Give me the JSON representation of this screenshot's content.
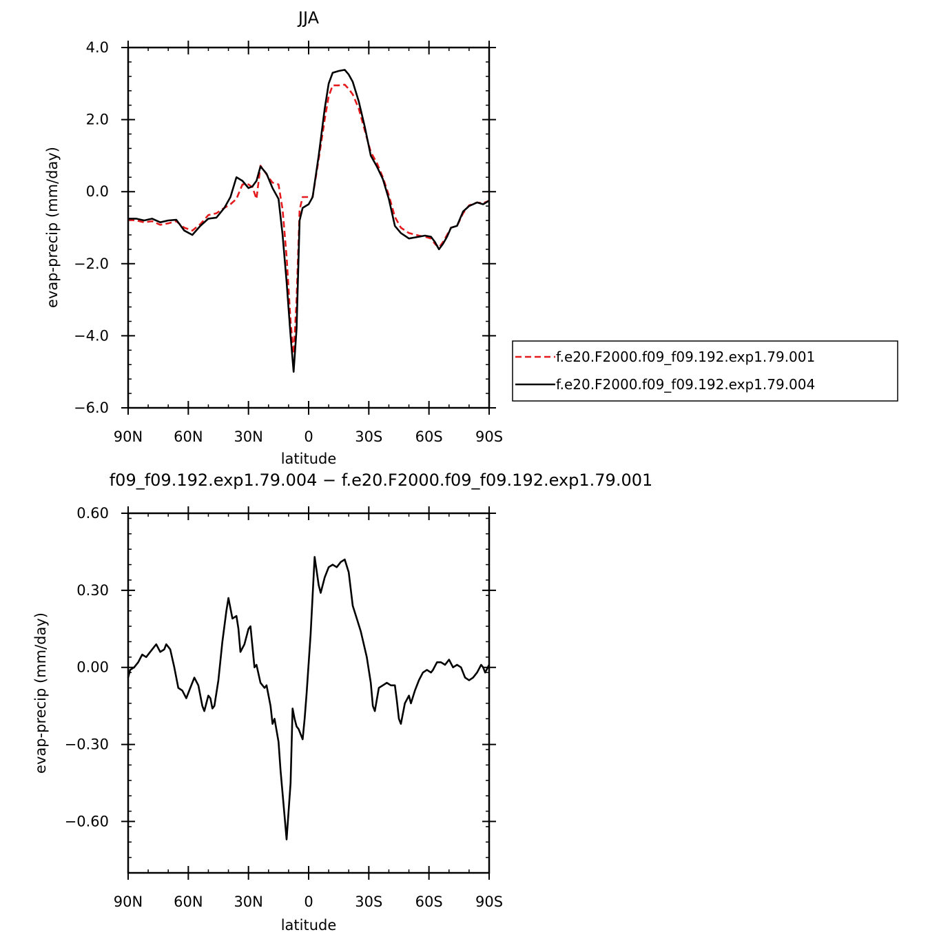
{
  "chart_data": [
    {
      "type": "line",
      "title": "JJA",
      "xlabel": "latitude",
      "ylabel": "evap-precip (mm/day)",
      "xlim": [
        90,
        -90
      ],
      "ylim": [
        -6.0,
        4.0
      ],
      "x_ticks": [
        {
          "value": 90,
          "label": "90N"
        },
        {
          "value": 60,
          "label": "60N"
        },
        {
          "value": 30,
          "label": "30N"
        },
        {
          "value": 0,
          "label": "0"
        },
        {
          "value": -30,
          "label": "30S"
        },
        {
          "value": -60,
          "label": "60S"
        },
        {
          "value": -90,
          "label": "90S"
        }
      ],
      "y_ticks": [
        {
          "value": 4.0,
          "label": "4.0"
        },
        {
          "value": 2.0,
          "label": "2.0"
        },
        {
          "value": 0.0,
          "label": "0.0"
        },
        {
          "value": -2.0,
          "label": "−2.0"
        },
        {
          "value": -4.0,
          "label": "−4.0"
        },
        {
          "value": -6.0,
          "label": "−6.0"
        }
      ],
      "legend_position": "right",
      "series": [
        {
          "name": "f.e20.F2000.f09_f09.192.exp1.79.001",
          "color": "#e41a1c",
          "dash": "dashed",
          "points": [
            [
              90,
              -0.78
            ],
            [
              86,
              -0.8
            ],
            [
              82,
              -0.85
            ],
            [
              78,
              -0.82
            ],
            [
              74,
              -0.92
            ],
            [
              70,
              -0.88
            ],
            [
              66,
              -0.82
            ],
            [
              62,
              -1.0
            ],
            [
              58,
              -1.08
            ],
            [
              54,
              -0.9
            ],
            [
              50,
              -0.65
            ],
            [
              46,
              -0.6
            ],
            [
              42,
              -0.45
            ],
            [
              39,
              -0.35
            ],
            [
              36,
              -0.2
            ],
            [
              33,
              0.2
            ],
            [
              30,
              0.2
            ],
            [
              28,
              0.12
            ],
            [
              26,
              -0.2
            ],
            [
              24,
              0.72
            ],
            [
              21,
              0.48
            ],
            [
              18,
              0.25
            ],
            [
              15,
              0.2
            ],
            [
              13,
              -0.5
            ],
            [
              11,
              -1.8
            ],
            [
              9,
              -3.6
            ],
            [
              7.5,
              -4.5
            ],
            [
              6,
              -3.0
            ],
            [
              4.5,
              -0.5
            ],
            [
              3,
              -0.15
            ],
            [
              0,
              -0.15
            ],
            [
              -2,
              -0.15
            ],
            [
              -5,
              0.9
            ],
            [
              -8,
              2.0
            ],
            [
              -10,
              2.65
            ],
            [
              -12,
              2.95
            ],
            [
              -15,
              2.95
            ],
            [
              -18,
              2.97
            ],
            [
              -20,
              2.85
            ],
            [
              -22,
              2.7
            ],
            [
              -25,
              2.3
            ],
            [
              -28,
              1.7
            ],
            [
              -31,
              1.1
            ],
            [
              -34,
              0.8
            ],
            [
              -37,
              0.4
            ],
            [
              -40,
              -0.1
            ],
            [
              -43,
              -0.7
            ],
            [
              -46,
              -1.0
            ],
            [
              -50,
              -1.15
            ],
            [
              -55,
              -1.22
            ],
            [
              -58,
              -1.25
            ],
            [
              -61,
              -1.3
            ],
            [
              -63,
              -1.45
            ],
            [
              -65,
              -1.55
            ],
            [
              -67,
              -1.4
            ],
            [
              -69,
              -1.2
            ],
            [
              -71,
              -1.0
            ],
            [
              -74,
              -0.95
            ],
            [
              -77,
              -0.6
            ],
            [
              -80,
              -0.38
            ],
            [
              -84,
              -0.3
            ],
            [
              -87,
              -0.32
            ],
            [
              -90,
              -0.25
            ]
          ]
        },
        {
          "name": "f.e20.F2000.f09_f09.192.exp1.79.004",
          "color": "#000000",
          "dash": "solid",
          "points": [
            [
              90,
              -0.75
            ],
            [
              86,
              -0.75
            ],
            [
              82,
              -0.8
            ],
            [
              78,
              -0.75
            ],
            [
              74,
              -0.85
            ],
            [
              70,
              -0.8
            ],
            [
              66,
              -0.78
            ],
            [
              62,
              -1.08
            ],
            [
              58,
              -1.2
            ],
            [
              54,
              -0.95
            ],
            [
              50,
              -0.75
            ],
            [
              46,
              -0.72
            ],
            [
              42,
              -0.45
            ],
            [
              39,
              -0.15
            ],
            [
              36,
              0.4
            ],
            [
              33,
              0.3
            ],
            [
              30,
              0.1
            ],
            [
              28,
              0.15
            ],
            [
              26,
              0.3
            ],
            [
              24,
              0.7
            ],
            [
              21,
              0.5
            ],
            [
              18,
              0.1
            ],
            [
              15,
              -0.2
            ],
            [
              13,
              -1.2
            ],
            [
              11,
              -2.5
            ],
            [
              9,
              -4.0
            ],
            [
              7.5,
              -5.0
            ],
            [
              6,
              -3.8
            ],
            [
              4.5,
              -0.8
            ],
            [
              3,
              -0.45
            ],
            [
              0,
              -0.35
            ],
            [
              -2,
              -0.15
            ],
            [
              -5,
              1.0
            ],
            [
              -8,
              2.3
            ],
            [
              -10,
              3.0
            ],
            [
              -12,
              3.3
            ],
            [
              -15,
              3.35
            ],
            [
              -18,
              3.38
            ],
            [
              -20,
              3.25
            ],
            [
              -22,
              3.05
            ],
            [
              -25,
              2.5
            ],
            [
              -28,
              1.8
            ],
            [
              -31,
              1.0
            ],
            [
              -34,
              0.7
            ],
            [
              -37,
              0.35
            ],
            [
              -40,
              -0.2
            ],
            [
              -43,
              -0.95
            ],
            [
              -46,
              -1.15
            ],
            [
              -50,
              -1.3
            ],
            [
              -55,
              -1.25
            ],
            [
              -58,
              -1.22
            ],
            [
              -61,
              -1.25
            ],
            [
              -63,
              -1.4
            ],
            [
              -65,
              -1.6
            ],
            [
              -67,
              -1.45
            ],
            [
              -69,
              -1.25
            ],
            [
              -71,
              -1.0
            ],
            [
              -74,
              -0.95
            ],
            [
              -77,
              -0.55
            ],
            [
              -80,
              -0.4
            ],
            [
              -84,
              -0.3
            ],
            [
              -87,
              -0.35
            ],
            [
              -90,
              -0.25
            ]
          ]
        }
      ]
    },
    {
      "type": "line",
      "title": "f09_f09.192.exp1.79.004 − f.e20.F2000.f09_f09.192.exp1.79.001",
      "xlabel": "latitude",
      "ylabel": "evap-precip (mm/day)",
      "xlim": [
        90,
        -90
      ],
      "ylim": [
        -0.8,
        0.6
      ],
      "x_ticks": [
        {
          "value": 90,
          "label": "90N"
        },
        {
          "value": 60,
          "label": "60N"
        },
        {
          "value": 30,
          "label": "30N"
        },
        {
          "value": 0,
          "label": "0"
        },
        {
          "value": -30,
          "label": "30S"
        },
        {
          "value": -60,
          "label": "60S"
        },
        {
          "value": -90,
          "label": "90S"
        }
      ],
      "y_ticks": [
        {
          "value": 0.6,
          "label": "0.60"
        },
        {
          "value": 0.3,
          "label": "0.30"
        },
        {
          "value": 0.0,
          "label": "0.00"
        },
        {
          "value": -0.3,
          "label": "−0.30"
        },
        {
          "value": -0.6,
          "label": "−0.60"
        }
      ],
      "series": [
        {
          "color": "#000000",
          "dash": "solid",
          "points": [
            [
              90,
              -0.04
            ],
            [
              89,
              -0.01
            ],
            [
              87,
              0.0
            ],
            [
              85,
              0.02
            ],
            [
              83,
              0.05
            ],
            [
              81,
              0.04
            ],
            [
              79,
              0.06
            ],
            [
              77,
              0.08
            ],
            [
              76,
              0.09
            ],
            [
              74,
              0.06
            ],
            [
              72,
              0.07
            ],
            [
              71,
              0.09
            ],
            [
              69,
              0.07
            ],
            [
              67,
              0.0
            ],
            [
              65,
              -0.08
            ],
            [
              63,
              -0.09
            ],
            [
              61,
              -0.12
            ],
            [
              59,
              -0.08
            ],
            [
              57,
              -0.04
            ],
            [
              55,
              -0.07
            ],
            [
              53,
              -0.15
            ],
            [
              52,
              -0.17
            ],
            [
              50,
              -0.11
            ],
            [
              49,
              -0.12
            ],
            [
              48,
              -0.16
            ],
            [
              47,
              -0.15
            ],
            [
              45,
              -0.05
            ],
            [
              43,
              0.1
            ],
            [
              41,
              0.22
            ],
            [
              40,
              0.27
            ],
            [
              38,
              0.19
            ],
            [
              36,
              0.2
            ],
            [
              35,
              0.15
            ],
            [
              34,
              0.06
            ],
            [
              32,
              0.09
            ],
            [
              30,
              0.15
            ],
            [
              29,
              0.16
            ],
            [
              27,
              0.0
            ],
            [
              26,
              0.01
            ],
            [
              24,
              -0.06
            ],
            [
              22,
              -0.08
            ],
            [
              21,
              -0.07
            ],
            [
              19,
              -0.15
            ],
            [
              18,
              -0.22
            ],
            [
              17,
              -0.2
            ],
            [
              15,
              -0.29
            ],
            [
              14,
              -0.4
            ],
            [
              12,
              -0.58
            ],
            [
              11,
              -0.67
            ],
            [
              9,
              -0.45
            ],
            [
              8,
              -0.16
            ],
            [
              7,
              -0.2
            ],
            [
              6,
              -0.23
            ],
            [
              5,
              -0.24
            ],
            [
              3,
              -0.28
            ],
            [
              2,
              -0.2
            ],
            [
              1,
              -0.1
            ],
            [
              -1,
              0.13
            ],
            [
              -3,
              0.43
            ],
            [
              -5,
              0.32
            ],
            [
              -6,
              0.29
            ],
            [
              -8,
              0.35
            ],
            [
              -10,
              0.39
            ],
            [
              -12,
              0.4
            ],
            [
              -14,
              0.39
            ],
            [
              -16,
              0.41
            ],
            [
              -18,
              0.42
            ],
            [
              -20,
              0.37
            ],
            [
              -22,
              0.24
            ],
            [
              -24,
              0.19
            ],
            [
              -26,
              0.14
            ],
            [
              -29,
              0.04
            ],
            [
              -31,
              -0.06
            ],
            [
              -32,
              -0.15
            ],
            [
              -33,
              -0.17
            ],
            [
              -35,
              -0.08
            ],
            [
              -37,
              -0.07
            ],
            [
              -39,
              -0.06
            ],
            [
              -41,
              -0.07
            ],
            [
              -43,
              -0.07
            ],
            [
              -44,
              -0.13
            ],
            [
              -45,
              -0.2
            ],
            [
              -46,
              -0.22
            ],
            [
              -48,
              -0.14
            ],
            [
              -50,
              -0.11
            ],
            [
              -51,
              -0.14
            ],
            [
              -53,
              -0.09
            ],
            [
              -55,
              -0.05
            ],
            [
              -57,
              -0.02
            ],
            [
              -59,
              -0.01
            ],
            [
              -61,
              -0.02
            ],
            [
              -62,
              -0.01
            ],
            [
              -64,
              0.02
            ],
            [
              -66,
              0.02
            ],
            [
              -68,
              0.01
            ],
            [
              -70,
              0.03
            ],
            [
              -72,
              0.0
            ],
            [
              -74,
              0.01
            ],
            [
              -76,
              0.0
            ],
            [
              -78,
              -0.04
            ],
            [
              -80,
              -0.05
            ],
            [
              -82,
              -0.04
            ],
            [
              -84,
              -0.02
            ],
            [
              -86,
              0.01
            ],
            [
              -87,
              0.0
            ],
            [
              -88,
              -0.02
            ],
            [
              -90,
              0.01
            ]
          ]
        }
      ]
    }
  ]
}
